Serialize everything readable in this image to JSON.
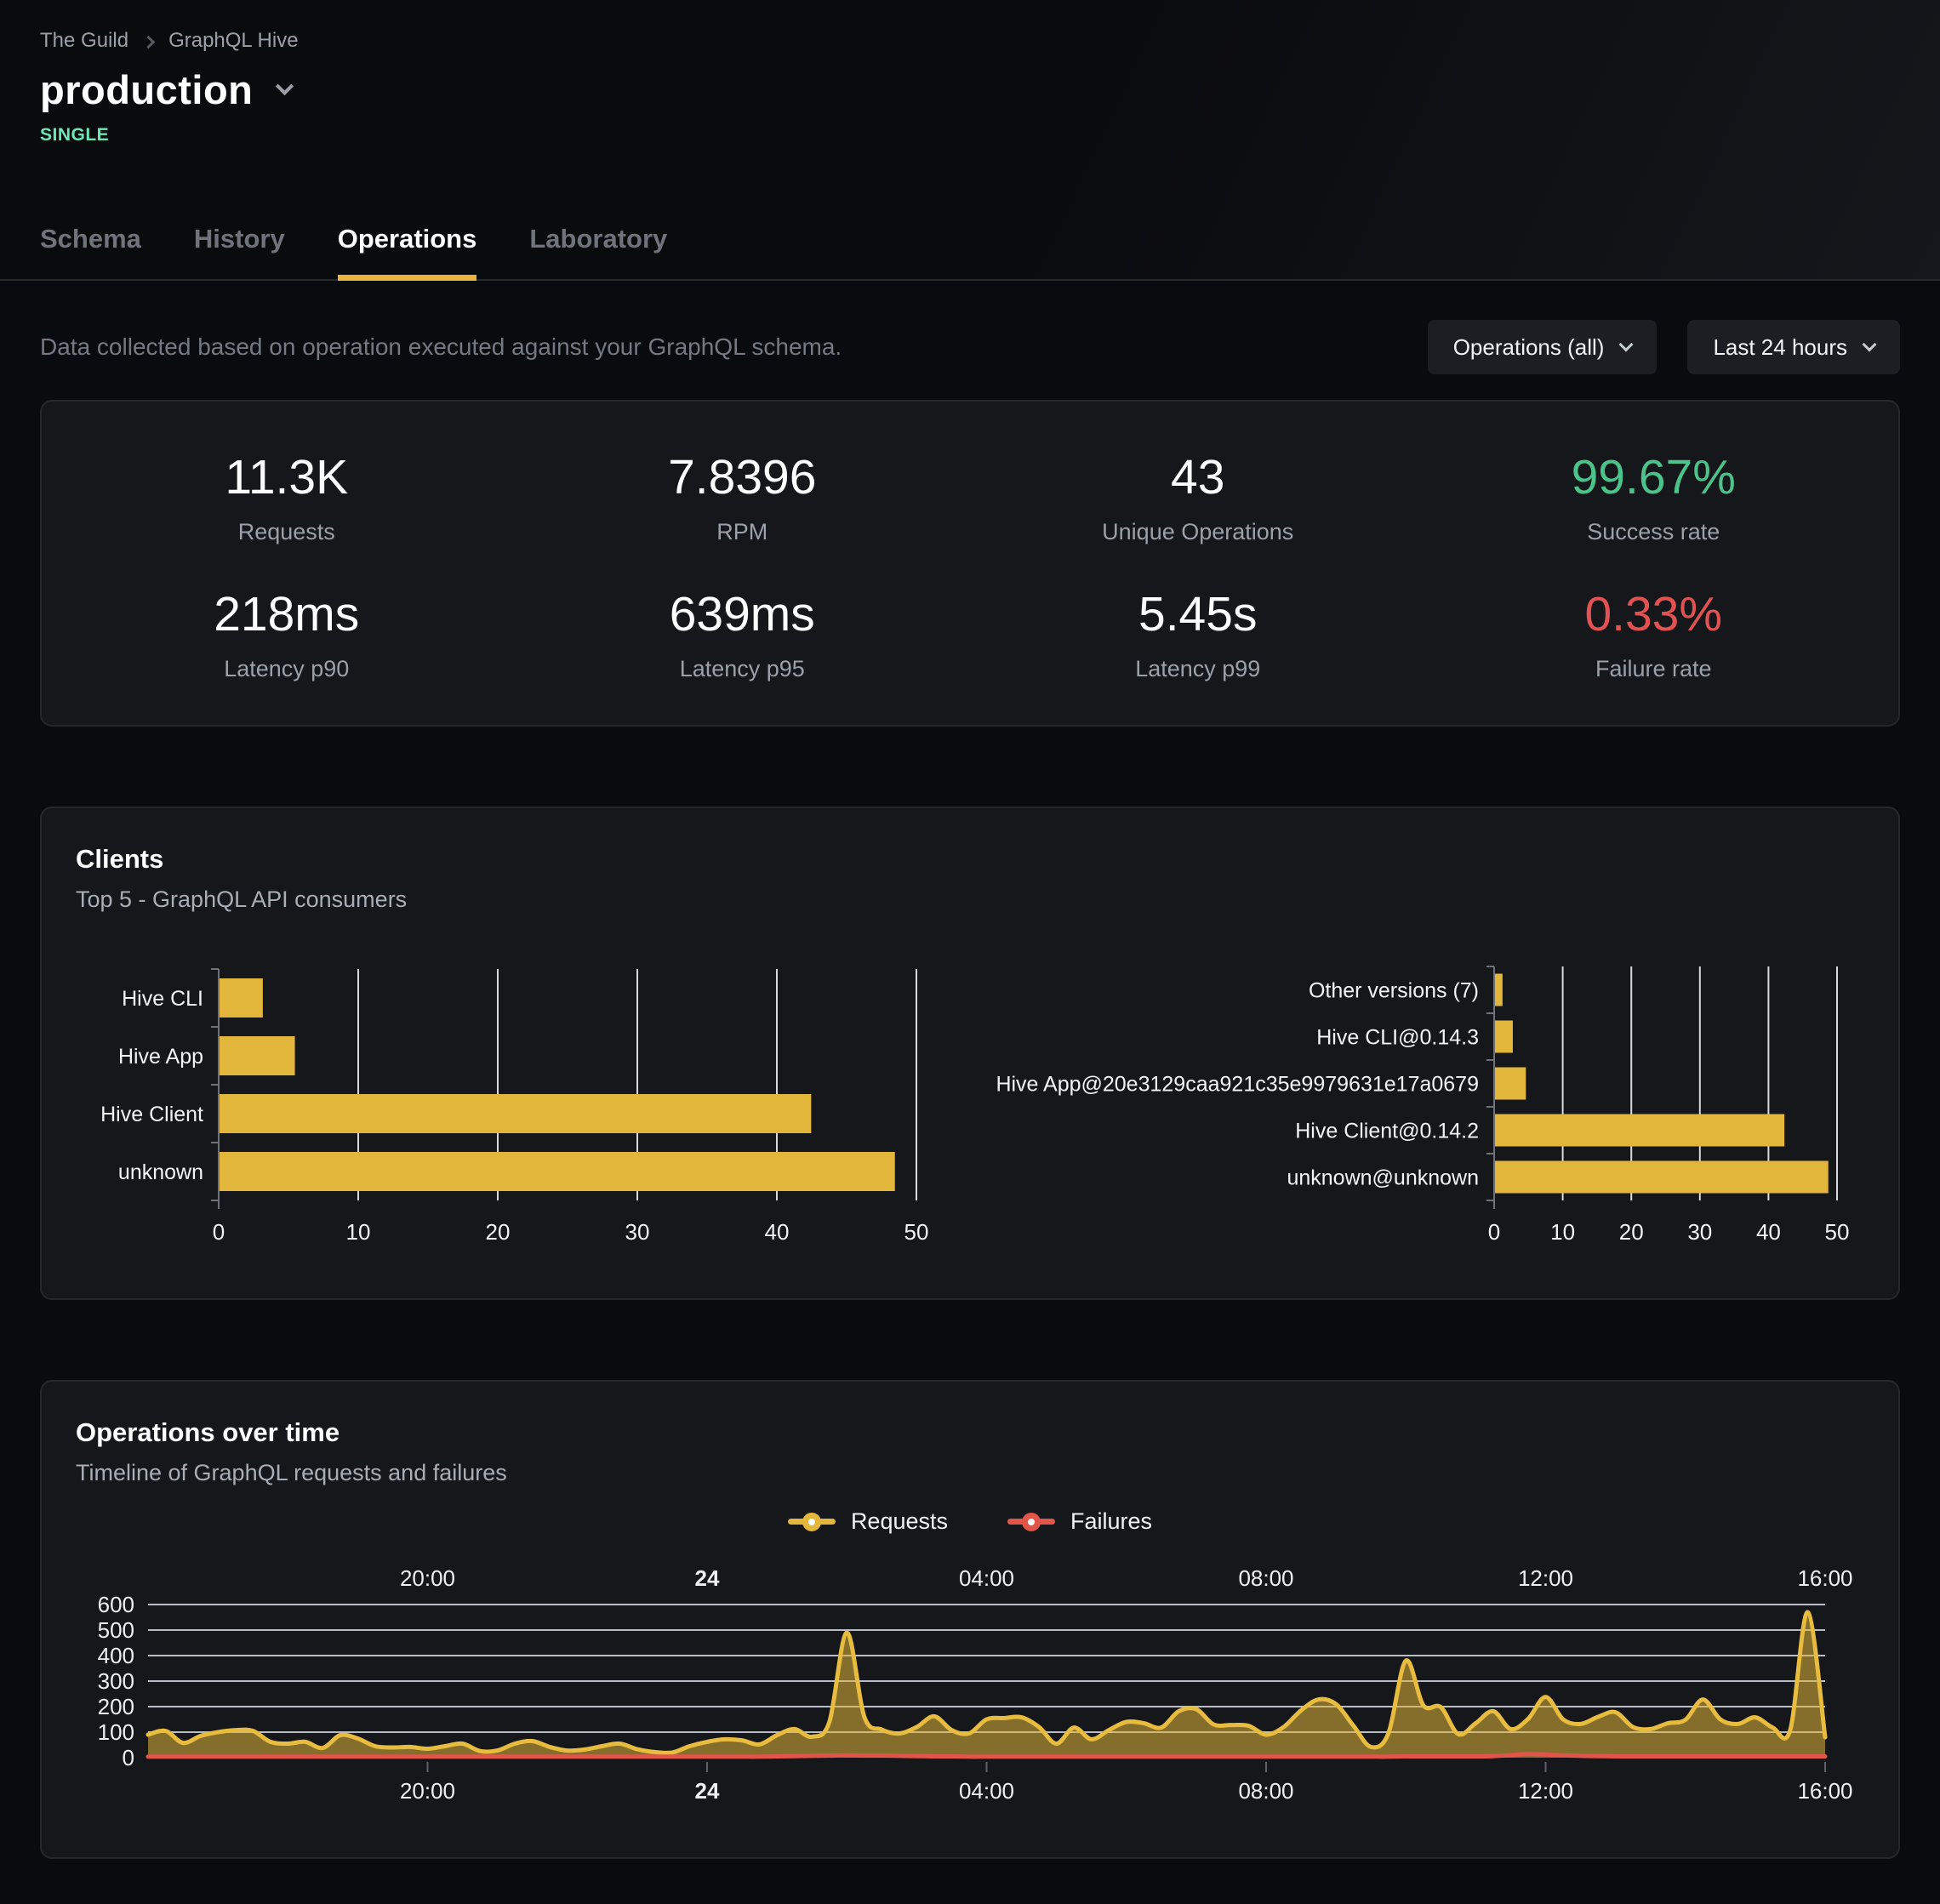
{
  "breadcrumb": {
    "org": "The Guild",
    "project": "GraphQL Hive"
  },
  "header": {
    "target_name": "production",
    "badge": "SINGLE"
  },
  "tabs": [
    {
      "label": "Schema"
    },
    {
      "label": "History"
    },
    {
      "label": "Operations"
    },
    {
      "label": "Laboratory"
    }
  ],
  "filters": {
    "description": "Data collected based on operation executed against your GraphQL schema.",
    "operations_dropdown": "Operations (all)",
    "period_dropdown": "Last 24 hours"
  },
  "stats": [
    {
      "value": "11.3K",
      "label": "Requests"
    },
    {
      "value": "7.8396",
      "label": "RPM"
    },
    {
      "value": "43",
      "label": "Unique Operations"
    },
    {
      "value": "99.67%",
      "label": "Success rate",
      "accent": "success"
    },
    {
      "value": "218ms",
      "label": "Latency p90"
    },
    {
      "value": "639ms",
      "label": "Latency p95"
    },
    {
      "value": "5.45s",
      "label": "Latency p99"
    },
    {
      "value": "0.33%",
      "label": "Failure rate",
      "accent": "failure"
    }
  ],
  "clients_section": {
    "title": "Clients",
    "subtitle": "Top 5 - GraphQL API consumers"
  },
  "operations_section": {
    "title": "Operations over time",
    "subtitle": "Timeline of GraphQL requests and failures",
    "legend": [
      {
        "label": "Requests"
      },
      {
        "label": "Failures"
      }
    ]
  },
  "colors": {
    "accent_yellow": "#e3b63c",
    "area_stroke": "#e8bc3e",
    "area_fill": "rgba(226,182,59,0.55)",
    "failure_red": "#e25549",
    "success_green": "#4cc38a",
    "failure_text_red": "#e35252",
    "badge_mint": "#6ee7b7",
    "card_bg": "#15171b",
    "page_bg": "#0a0b0e"
  },
  "chart_data": [
    {
      "name": "clients_by_name",
      "type": "bar",
      "orientation": "horizontal",
      "categories": [
        "Hive CLI",
        "Hive App",
        "Hive Client",
        "unknown"
      ],
      "values": [
        3.1,
        5.4,
        42.4,
        48.4
      ],
      "xlim": [
        0,
        50
      ],
      "xticks": [
        0,
        10,
        20,
        30,
        40,
        50
      ],
      "bar_color": "#e2b63b",
      "grid": true,
      "xlabel": "",
      "ylabel": ""
    },
    {
      "name": "clients_by_version",
      "type": "bar",
      "orientation": "horizontal",
      "categories": [
        "Other versions (7)",
        "Hive CLI@0.14.3",
        "Hive App@20e3129caa921c35e9979631e17a0679",
        "Hive Client@0.14.2",
        "unknown@unknown"
      ],
      "values": [
        1.1,
        2.6,
        4.5,
        42.2,
        48.6
      ],
      "xlim": [
        0,
        50
      ],
      "xticks": [
        0,
        10,
        20,
        30,
        40,
        50
      ],
      "bar_color": "#e2b63b",
      "grid": true,
      "xlabel": "",
      "ylabel": ""
    },
    {
      "name": "operations_over_time",
      "type": "area",
      "title": "Operations over time",
      "x_unit": "hours_from_start",
      "x_start_label": "16:00 (previous day)",
      "x_range_hours": 24,
      "sample_interval_minutes": 15,
      "x_ticks": [
        {
          "t": 4,
          "label": "20:00"
        },
        {
          "t": 8,
          "label": "24",
          "bold": true
        },
        {
          "t": 12,
          "label": "04:00"
        },
        {
          "t": 16,
          "label": "08:00"
        },
        {
          "t": 20,
          "label": "12:00"
        },
        {
          "t": 24,
          "label": "16:00"
        }
      ],
      "ylim": [
        0,
        600
      ],
      "yticks": [
        0,
        100,
        200,
        300,
        400,
        500,
        600
      ],
      "grid": true,
      "legend_position": "top-center",
      "series": [
        {
          "name": "Requests",
          "color": "#e8bc3e",
          "fill": "rgba(226,182,59,0.55)",
          "values": [
            90,
            105,
            58,
            85,
            100,
            108,
            105,
            62,
            55,
            62,
            38,
            88,
            75,
            45,
            40,
            42,
            35,
            45,
            55,
            26,
            28,
            55,
            65,
            42,
            28,
            32,
            45,
            55,
            33,
            22,
            20,
            45,
            62,
            72,
            68,
            52,
            88,
            112,
            82,
            140,
            490,
            160,
            110,
            95,
            120,
            162,
            108,
            95,
            150,
            155,
            158,
            120,
            55,
            118,
            72,
            108,
            140,
            135,
            118,
            182,
            190,
            130,
            128,
            125,
            90,
            120,
            185,
            228,
            210,
            125,
            42,
            95,
            380,
            205,
            198,
            92,
            135,
            182,
            112,
            152,
            238,
            150,
            132,
            160,
            178,
            120,
            112,
            135,
            148,
            228,
            150,
            132,
            158,
            118,
            108,
            570,
            80
          ]
        },
        {
          "name": "Failures",
          "color": "#e25549",
          "fill": "none",
          "values": [
            4,
            4,
            4,
            4,
            4,
            4,
            4,
            4,
            4,
            4,
            4,
            4,
            4,
            4,
            4,
            4,
            4,
            4,
            4,
            4,
            4,
            4,
            4,
            4,
            4,
            4,
            4,
            4,
            4,
            4,
            4,
            4,
            4,
            4,
            4,
            4,
            5,
            6,
            7,
            8,
            9,
            8,
            8,
            7,
            6,
            5,
            5,
            4,
            4,
            4,
            4,
            4,
            4,
            4,
            4,
            4,
            4,
            4,
            4,
            4,
            4,
            4,
            4,
            4,
            4,
            4,
            4,
            4,
            4,
            4,
            4,
            4,
            5,
            5,
            5,
            5,
            5,
            6,
            10,
            14,
            12,
            9,
            7,
            6,
            5,
            5,
            5,
            5,
            5,
            5,
            5,
            5,
            5,
            5,
            5,
            5,
            5
          ]
        }
      ]
    }
  ]
}
